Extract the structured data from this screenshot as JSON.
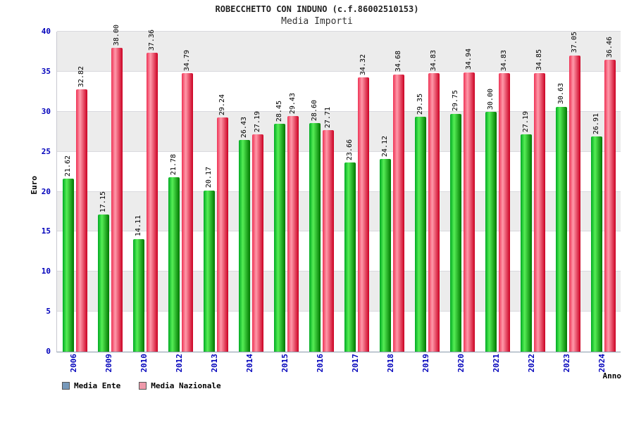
{
  "chart_data": {
    "type": "bar",
    "title": "ROBECCHETTO CON INDUNO (c.f.86002510153)",
    "subtitle": "Media Importi",
    "xlabel": "Anno",
    "ylabel": "Euro",
    "ylim": [
      0,
      40
    ],
    "ytick_step": 5,
    "grid": true,
    "legend_position": "bottom-left",
    "categories": [
      "2006",
      "2009",
      "2010",
      "2012",
      "2013",
      "2014",
      "2015",
      "2016",
      "2017",
      "2018",
      "2019",
      "2020",
      "2021",
      "2022",
      "2023",
      "2024"
    ],
    "series": [
      {
        "name": "Media Ente",
        "values": [
          21.62,
          17.15,
          14.11,
          21.78,
          20.17,
          26.43,
          28.45,
          28.6,
          23.66,
          24.12,
          29.35,
          29.75,
          30.0,
          27.19,
          30.63,
          26.91
        ],
        "gradient": [
          "#00aa22",
          "#55ee55",
          "#007700"
        ]
      },
      {
        "name": "Media Nazionale",
        "values": [
          32.82,
          38.0,
          37.36,
          34.79,
          29.24,
          27.19,
          29.43,
          27.71,
          34.32,
          34.68,
          34.83,
          34.94,
          34.83,
          34.85,
          37.05,
          36.46
        ],
        "gradient": [
          "#ee3355",
          "#ff99aa",
          "#cc0022"
        ]
      }
    ],
    "legend": [
      {
        "label": "Media Ente",
        "swatch": "#7799bb"
      },
      {
        "label": "Media Nazionale",
        "swatch": "#ee99aa"
      }
    ],
    "colors": {
      "axis_text": "#0000bb",
      "band_gray": "#ececec",
      "band_white": "#ffffff"
    }
  }
}
